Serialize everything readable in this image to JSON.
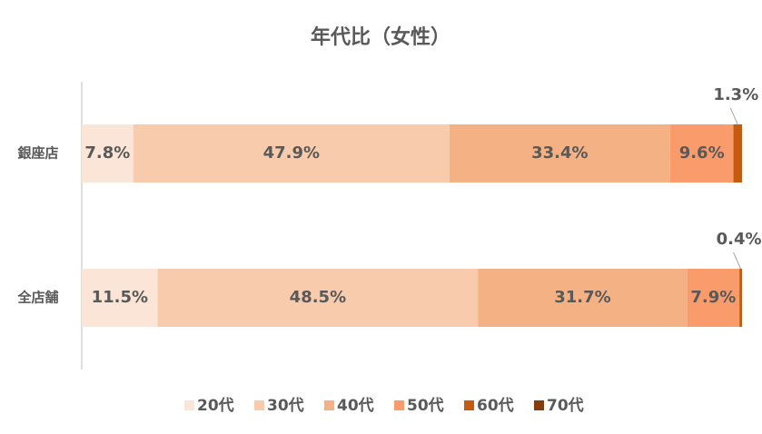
{
  "chart_data": {
    "type": "stacked-bar-horizontal",
    "title": "年代比（女性）",
    "categories": [
      "銀座店",
      "全店舗"
    ],
    "xlim": [
      0,
      100
    ],
    "series": [
      {
        "name": "20代",
        "color": "#fbe5d6",
        "values": [
          7.8,
          11.5
        ],
        "value_labels": [
          "7.8%",
          "11.5%"
        ]
      },
      {
        "name": "30代",
        "color": "#f8cbad",
        "values": [
          47.9,
          48.5
        ],
        "value_labels": [
          "47.9%",
          "48.5%"
        ]
      },
      {
        "name": "40代",
        "color": "#f4b183",
        "values": [
          33.4,
          31.7
        ],
        "value_labels": [
          "33.4%",
          "31.7%"
        ]
      },
      {
        "name": "50代",
        "color": "#f99b6b",
        "values": [
          9.6,
          7.9
        ],
        "value_labels": [
          "9.6%",
          "7.9%"
        ]
      },
      {
        "name": "60代",
        "color": "#c55a11",
        "values": [
          1.3,
          0.4
        ],
        "value_labels": [
          "1.3%",
          "0.4%"
        ]
      },
      {
        "name": "70代",
        "color": "#843c0c",
        "values": [
          0,
          0
        ],
        "value_labels": [
          null,
          null
        ]
      }
    ]
  }
}
